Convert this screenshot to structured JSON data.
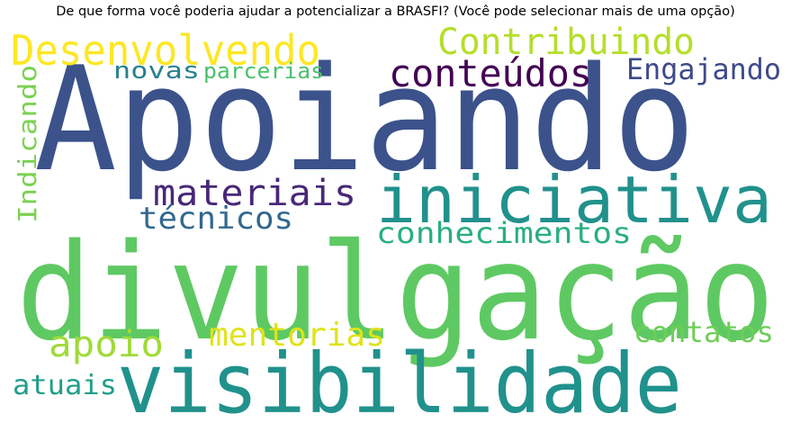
{
  "chart_data": {
    "type": "wordcloud",
    "title": "De que forma você poderia ajudar a potencializar a BRASFI?  (Você pode selecionar mais de uma opção)",
    "words": [
      {
        "text": "Apoiando",
        "color": "#3b528b"
      },
      {
        "text": "divulgação",
        "color": "#5ec962"
      },
      {
        "text": "visibilidade",
        "color": "#21918c"
      },
      {
        "text": "iniciativa",
        "color": "#21918c"
      },
      {
        "text": "Desenvolvendo",
        "color": "#fde725"
      },
      {
        "text": "Contribuindo",
        "color": "#b5de2b"
      },
      {
        "text": "conteúdos",
        "color": "#440154"
      },
      {
        "text": "materiais",
        "color": "#482878"
      },
      {
        "text": "Engajando",
        "color": "#3e4a89"
      },
      {
        "text": "conhecimentos",
        "color": "#29af7f"
      },
      {
        "text": "técnicos",
        "color": "#31688e"
      },
      {
        "text": "mentorias",
        "color": "#dfe318"
      },
      {
        "text": "apoio",
        "color": "#a0da39"
      },
      {
        "text": "contatos",
        "color": "#6ece58"
      },
      {
        "text": "atuais",
        "color": "#1f9e89"
      },
      {
        "text": "novas",
        "color": "#26828e"
      },
      {
        "text": "parcerias",
        "color": "#4ac16d"
      },
      {
        "text": "Indicando",
        "color": "#7ad151"
      }
    ]
  }
}
